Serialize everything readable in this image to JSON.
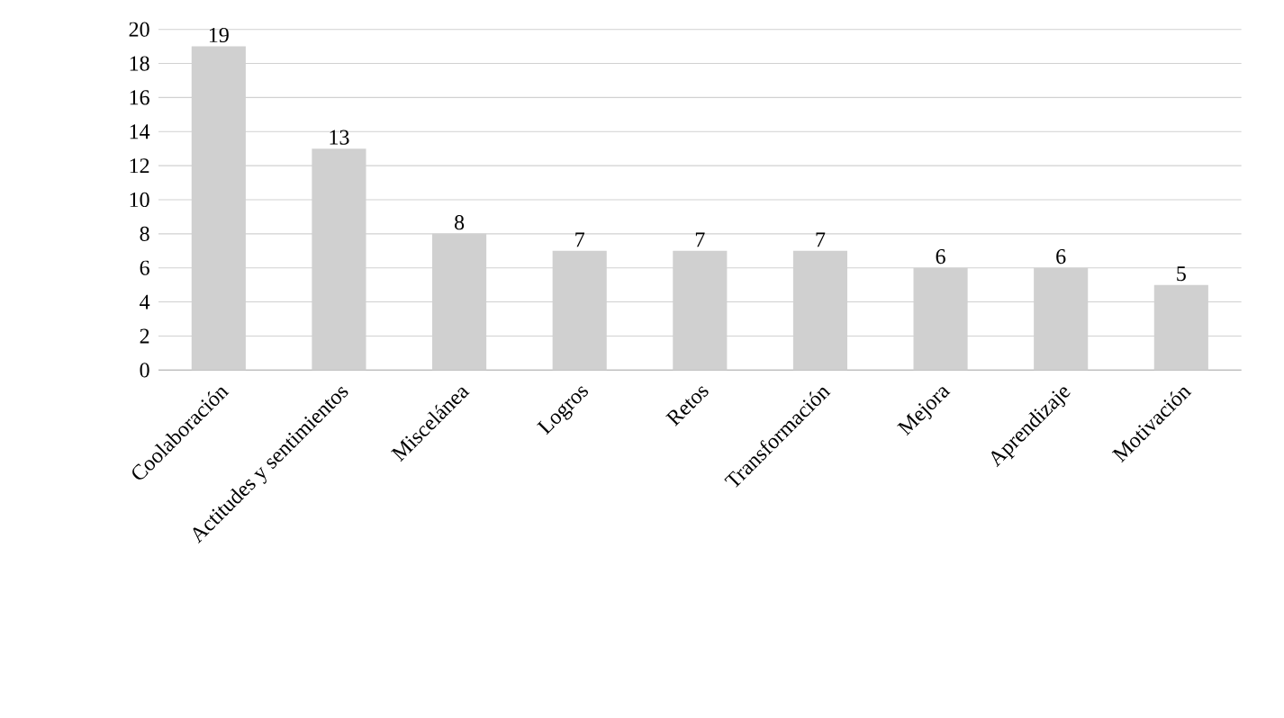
{
  "chart_data": {
    "type": "bar",
    "categories": [
      "Coolaboración",
      "Actitudes y sentimientos",
      "Miscelánea",
      "Logros",
      "Retos",
      "Transformación",
      "Mejora",
      "Aprendizaje",
      "Motivación"
    ],
    "values": [
      19,
      13,
      8,
      7,
      7,
      7,
      6,
      6,
      5
    ],
    "color": "#d0d0d0",
    "ylim": [
      0,
      20
    ],
    "yticks": [
      0,
      2,
      4,
      6,
      8,
      10,
      12,
      14,
      16,
      18,
      20
    ],
    "grid": "y",
    "data_labels": true
  }
}
